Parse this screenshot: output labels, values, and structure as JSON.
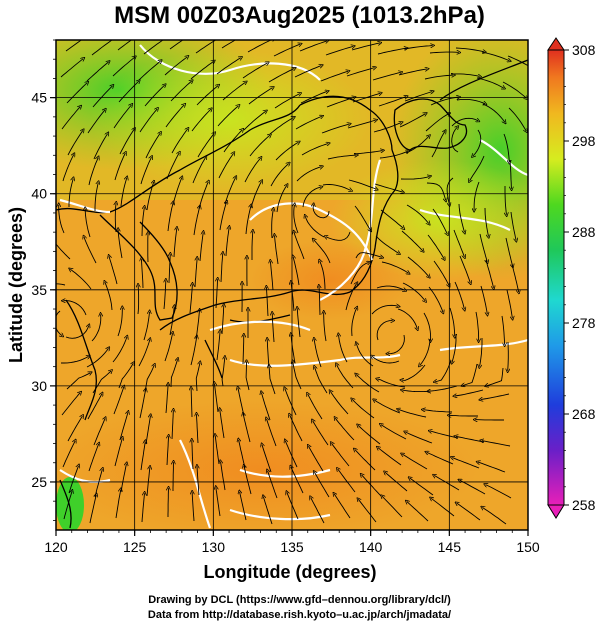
{
  "title": "MSM 00Z03Aug2025 (1013.2hPa)",
  "map": {
    "lon_range": [
      120,
      150
    ],
    "lat_range": [
      22.5,
      48
    ],
    "x_axis": {
      "label": "Longitude (degrees)",
      "ticks": [
        120,
        125,
        130,
        135,
        140,
        145,
        150
      ],
      "tick_labels": [
        "120",
        "125",
        "130",
        "135",
        "140",
        "145",
        "150"
      ]
    },
    "y_axis": {
      "label": "Latitude  (degrees)",
      "ticks": [
        25,
        30,
        35,
        40,
        45
      ],
      "tick_labels": [
        "25",
        "30",
        "35",
        "40",
        "45"
      ]
    },
    "grid": true,
    "features": [
      "temperature-shading",
      "streamlines",
      "coastlines",
      "white-contours"
    ]
  },
  "colorbar": {
    "min": 258,
    "max": 308,
    "ticks": [
      308,
      298,
      288,
      278,
      268,
      258
    ],
    "tick_labels": [
      "308",
      "298",
      "288",
      "278",
      "268",
      "258"
    ],
    "colors": [
      "#e01fb0",
      "#5a1fc8",
      "#1f3ddc",
      "#1f8ee8",
      "#1fd0d6",
      "#1fc866",
      "#4fd81f",
      "#c6ea1f",
      "#f0c81f",
      "#f08a1f",
      "#e8401f"
    ]
  },
  "credits": {
    "line1": "Drawing by DCL (https://www.gfd–dennou.org/library/dcl/)",
    "line2": "Data from http://database.rish.kyoto–u.ac.jp/arch/jmadata/"
  }
}
